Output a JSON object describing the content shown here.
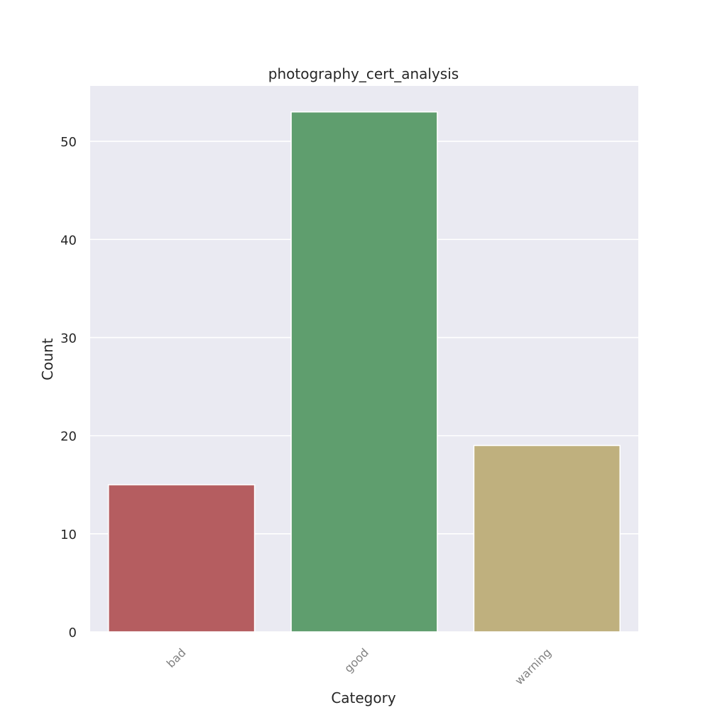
{
  "chart_data": {
    "type": "bar",
    "title": "photography_cert_analysis",
    "xlabel": "Category",
    "ylabel": "Count",
    "categories": [
      "bad",
      "good",
      "warning"
    ],
    "values": [
      15,
      53,
      19
    ],
    "colors": [
      "#b55d60",
      "#5f9e6e",
      "#bfb07e"
    ],
    "yticks": [
      0,
      10,
      20,
      30,
      40,
      50
    ],
    "ylim": [
      0,
      55.65
    ],
    "grid": true,
    "legend": "none",
    "background_color": "#eaeaf2",
    "gridline_color": "#ffffff"
  }
}
